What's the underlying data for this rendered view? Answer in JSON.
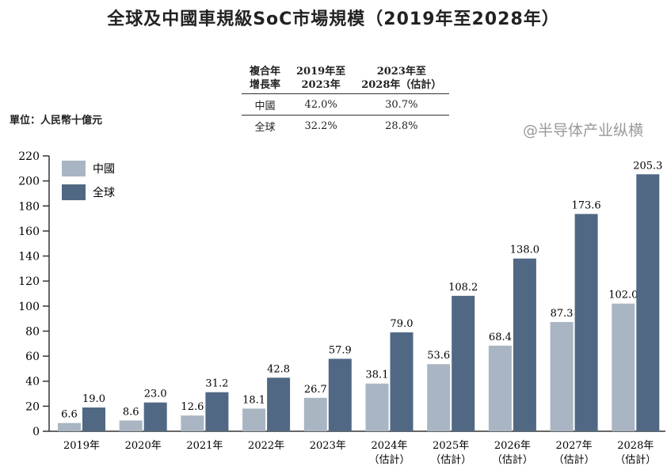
{
  "title": "全球及中國車規級SoC市場規模（2019年至2028年）",
  "unit_label": "單位：人民幣十億元",
  "cagr_table": {
    "header": [
      "複合年\n增長率",
      "2019年至\n2023年",
      "2023年至\n2028年（估計）"
    ],
    "rows": [
      {
        "label": "中國",
        "v1": "42.0%",
        "v2": "30.7%"
      },
      {
        "label": "全球",
        "v1": "32.2%",
        "v2": "28.8%"
      }
    ]
  },
  "watermark": "@半导体产业纵横",
  "chart_data": {
    "type": "bar",
    "title": "全球及中國車規級SoC市場規模（2019年至2028年）",
    "ylabel": "單位：人民幣十億元",
    "xlabel": "",
    "ylim": [
      0,
      220
    ],
    "yticks": [
      0,
      20,
      40,
      60,
      80,
      100,
      120,
      140,
      160,
      180,
      200,
      220
    ],
    "grid": false,
    "legend": "top-left",
    "categories": [
      "2019年",
      "2020年",
      "2021年",
      "2022年",
      "2023年",
      "2024年\n（估計）",
      "2025年\n（估計）",
      "2026年\n（估計）",
      "2027年\n（估計）",
      "2028年\n（估計）"
    ],
    "series": [
      {
        "name": "中國",
        "color": "#a9b5c2",
        "values": [
          6.6,
          8.6,
          12.6,
          18.1,
          26.7,
          38.1,
          53.6,
          68.4,
          87.3,
          102.0
        ]
      },
      {
        "name": "全球",
        "color": "#506883",
        "values": [
          19.0,
          23.0,
          31.2,
          42.8,
          57.9,
          79.0,
          108.2,
          138.0,
          173.6,
          205.3
        ]
      }
    ]
  }
}
